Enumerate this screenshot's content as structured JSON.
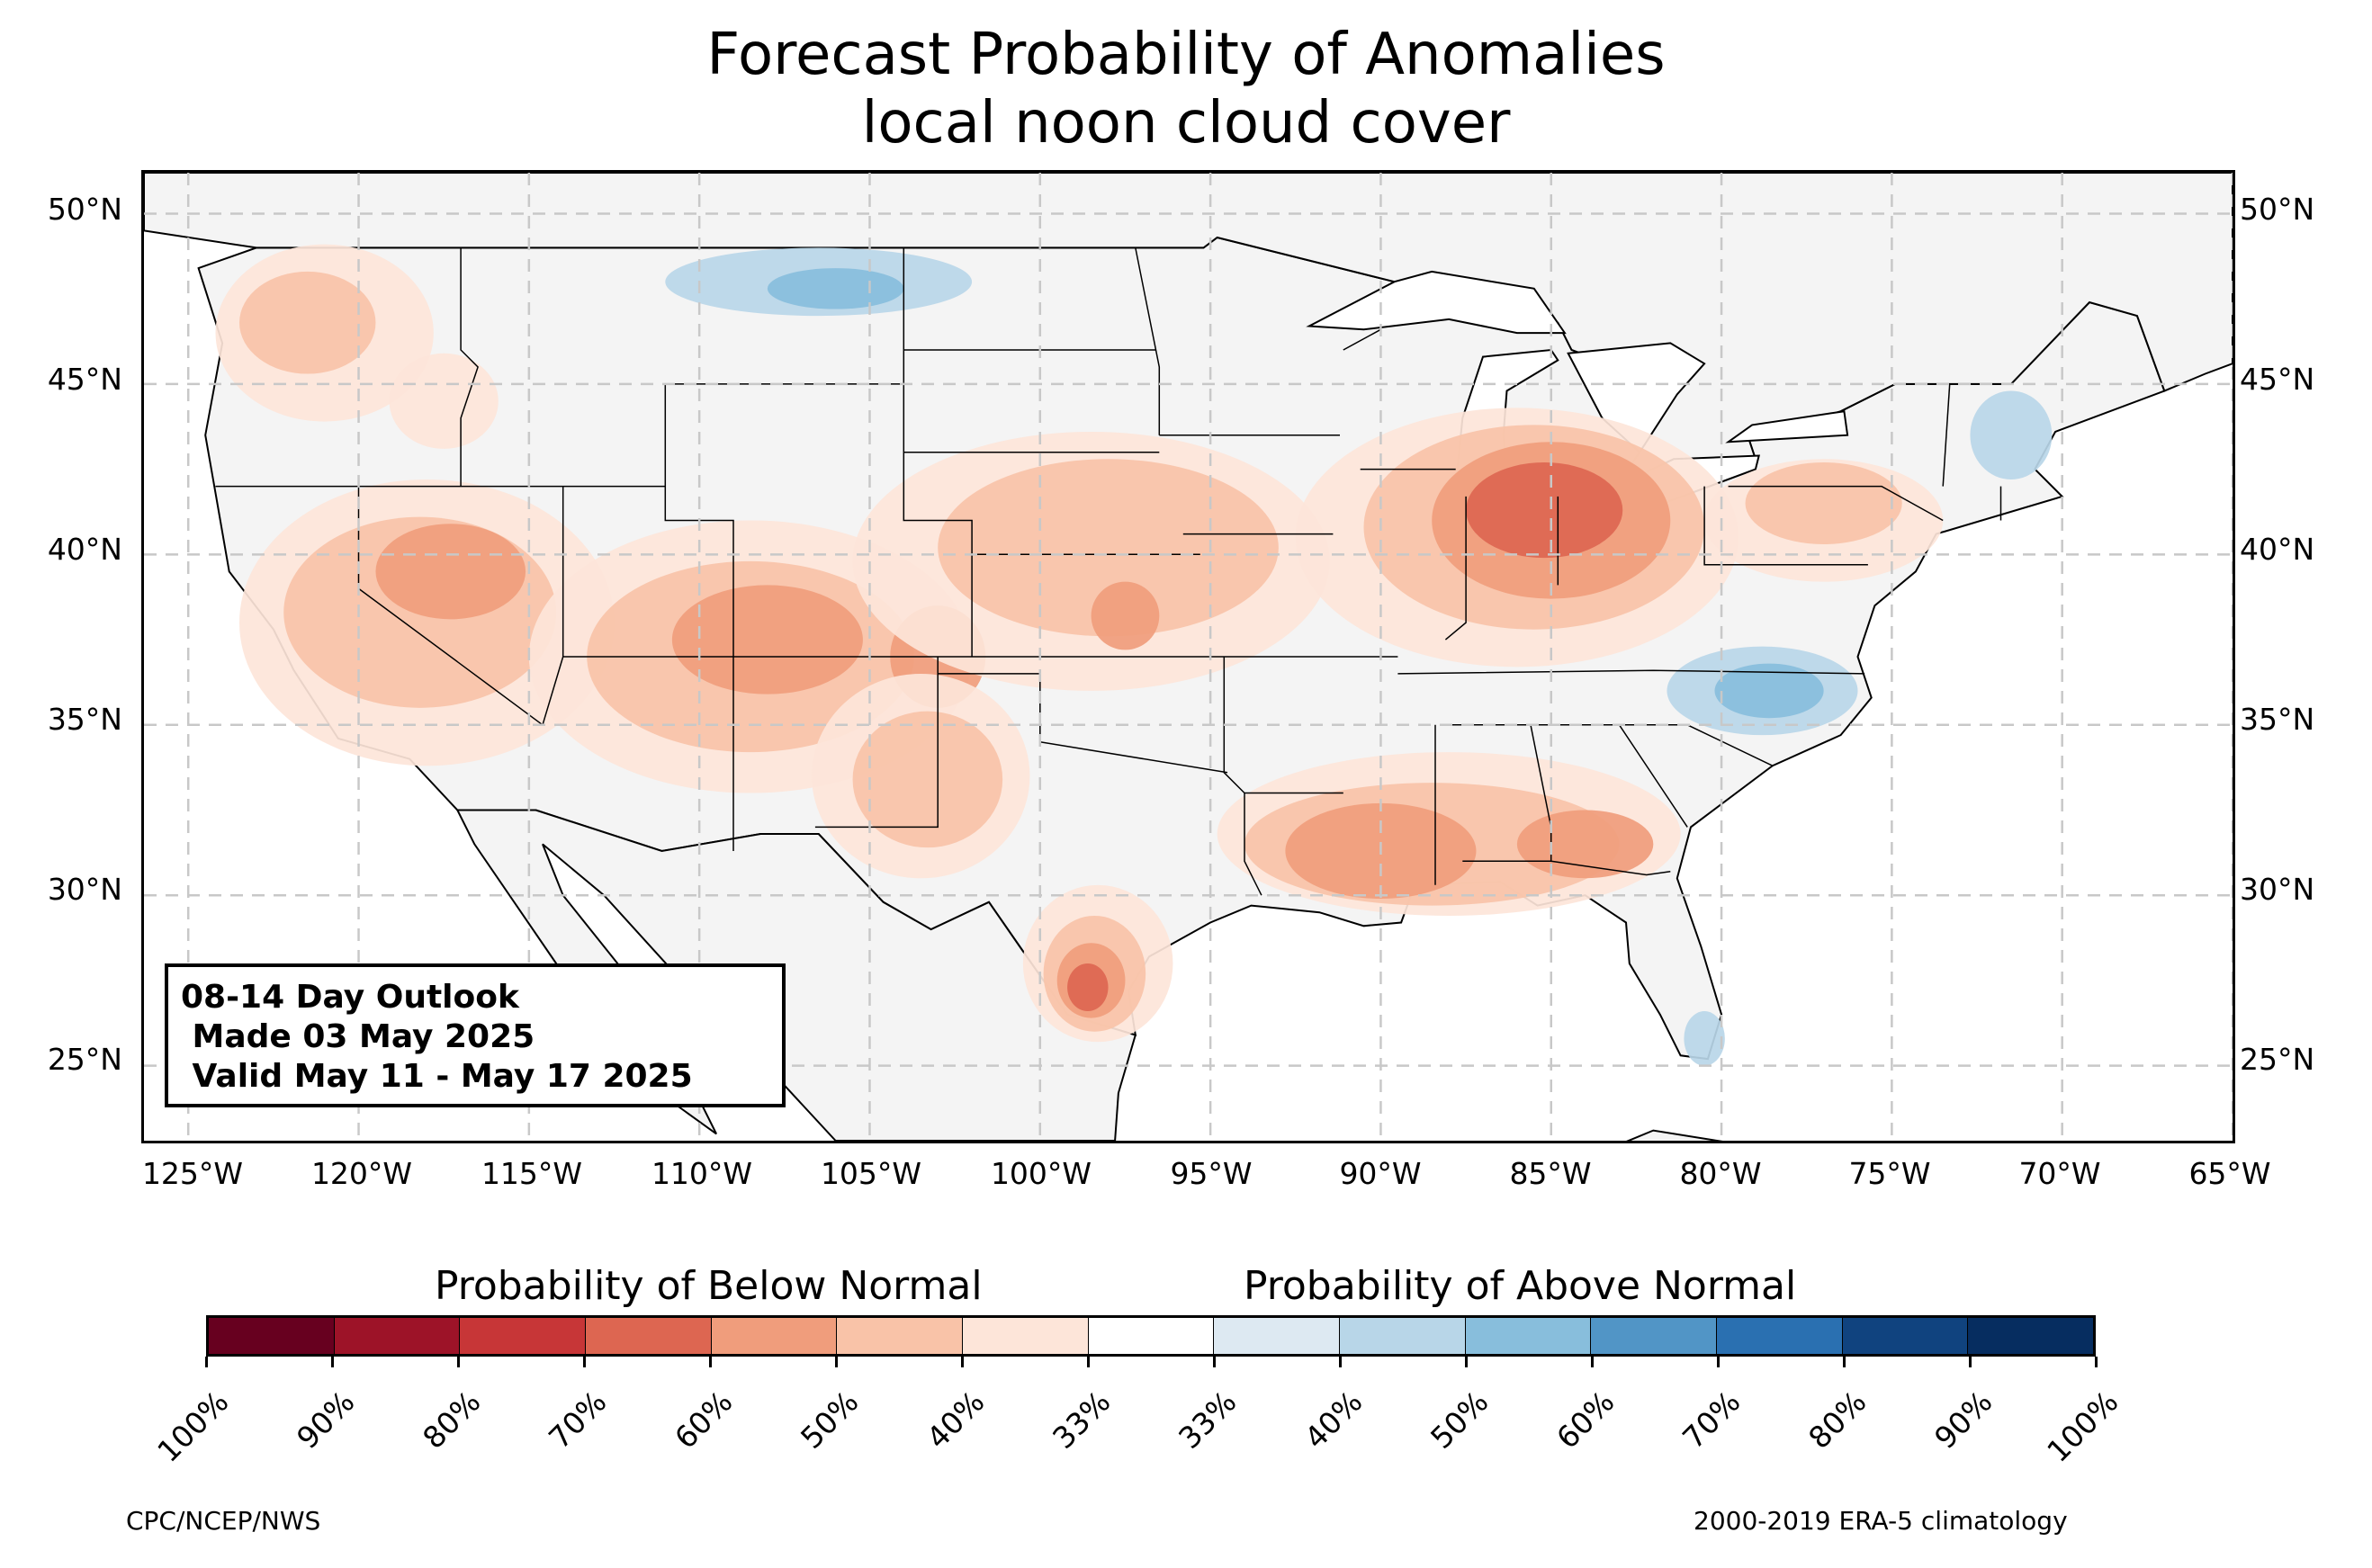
{
  "title_line1": "Forecast Probability of Anomalies",
  "title_line2": "local noon cloud cover",
  "lat_labels": [
    "50°N",
    "45°N",
    "40°N",
    "35°N",
    "30°N",
    "25°N"
  ],
  "lon_labels": [
    "125°W",
    "120°W",
    "115°W",
    "110°W",
    "105°W",
    "100°W",
    "95°W",
    "90°W",
    "85°W",
    "80°W",
    "75°W",
    "70°W",
    "65°W"
  ],
  "outlook": {
    "line1": "08-14 Day Outlook",
    "line2": " Made 03 May 2025",
    "line3": " Valid May 11 - May 17 2025"
  },
  "colorbar": {
    "below_title": "Probability of Below Normal",
    "above_title": "Probability of Above Normal",
    "colors": [
      "#67001f",
      "#9d1328",
      "#c73637",
      "#dd6651",
      "#f09d7c",
      "#f9c3a8",
      "#fde5d9",
      "#ffffff",
      "#dde9f2",
      "#b8d6e8",
      "#88bedc",
      "#5195c6",
      "#2a70b1",
      "#10437f",
      "#062d60"
    ],
    "tick_labels": [
      "100%",
      "90%",
      "80%",
      "70%",
      "60%",
      "50%",
      "40%",
      "33%",
      "33%",
      "40%",
      "50%",
      "60%",
      "70%",
      "80%",
      "90%",
      "100%"
    ]
  },
  "footer_left": "CPC/NCEP/NWS",
  "footer_right": "2000-2019 ERA-5 climatology",
  "map_data": {
    "projection": "PlateCarree",
    "lon_range": [
      -126.3,
      -65.0
    ],
    "lat_range": [
      22.8,
      51.2
    ],
    "land_color": "#f4f4f4",
    "ocean_color": "#ffffff",
    "below_regions": [
      {
        "name": "Pacific Northwest",
        "level": "50%"
      },
      {
        "name": "Great Basin / California",
        "level": "60%"
      },
      {
        "name": "Four Corners",
        "level": "60%"
      },
      {
        "name": "Central Plains",
        "level": "50%"
      },
      {
        "name": "Ohio Valley / Michigan",
        "level": "70%"
      },
      {
        "name": "Pennsylvania / New York",
        "level": "50%"
      },
      {
        "name": "Gulf Coast",
        "level": "60%"
      },
      {
        "name": "South Texas",
        "level": "70%"
      }
    ],
    "above_regions": [
      {
        "name": "Northern Rockies / Montana",
        "level": "40%"
      },
      {
        "name": "North Carolina / Virginia",
        "level": "50%"
      },
      {
        "name": "New England",
        "level": "40%"
      },
      {
        "name": "South Florida",
        "level": "40%"
      }
    ]
  }
}
